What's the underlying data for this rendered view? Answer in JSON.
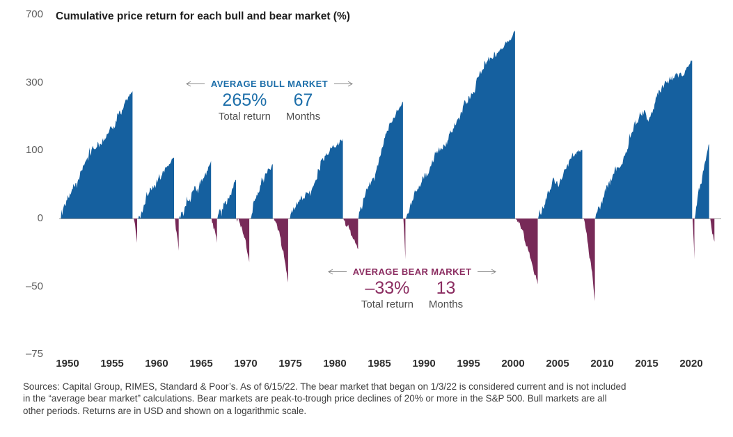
{
  "title": "Cumulative price return for each bull and bear market (%)",
  "annotations": {
    "bull": {
      "label": "AVERAGE BULL MARKET",
      "return_value": "265%",
      "return_caption": "Total return",
      "months_value": "67",
      "months_caption": "Months"
    },
    "bear": {
      "label": "AVERAGE BEAR MARKET",
      "return_value": "–33%",
      "return_caption": "Total return",
      "months_value": "13",
      "months_caption": "Months"
    }
  },
  "footer": {
    "lines": [
      "Sources: Capital Group, RIMES, Standard & Poor’s. As of 6/15/22. The bear market that began on 1/3/22 is considered current and is not included",
      "in the “average bear market” calculations. Bear markets are peak-to-trough price declines of 20% or more in the S&P 500. Bull markets are all",
      "other periods. Returns are in USD and shown on a logarithmic scale."
    ]
  },
  "colors": {
    "bull_fill": "#15609F",
    "bear_fill": "#772A58",
    "bull_accent": "#1C6EA9",
    "bear_accent": "#8B2D61",
    "arrow_gray": "#8a8a8a",
    "zero_line": "#9b9b9b",
    "y_label": "#5d5d5d",
    "x_label": "#2f2f2f"
  },
  "chart_data": {
    "type": "area",
    "title": "Cumulative price return for each bull and bear market (%)",
    "scale": "logarithmic",
    "y_ticks": [
      700,
      300,
      100,
      0,
      -50,
      -75
    ],
    "x_ticks": [
      1950,
      1955,
      1960,
      1965,
      1970,
      1975,
      1980,
      1985,
      1990,
      1995,
      2000,
      2005,
      2010,
      2015,
      2020
    ],
    "x_range": [
      1949.2,
      2022.6
    ],
    "y_range_pct": [
      -75,
      700
    ],
    "legend_position": "none",
    "grid": false,
    "averages": {
      "bull": {
        "total_return_pct": 265,
        "months": 67
      },
      "bear": {
        "total_return_pct": -33,
        "months": 13
      }
    },
    "segments": [
      {
        "type": "bull",
        "start": 1949.2,
        "end": 1957.3,
        "return_pct": 267
      },
      {
        "type": "bear",
        "start": 1957.3,
        "end": 1957.81,
        "return_pct": -22
      },
      {
        "type": "bull",
        "start": 1957.81,
        "end": 1961.95,
        "return_pct": 86
      },
      {
        "type": "bear",
        "start": 1961.95,
        "end": 1962.48,
        "return_pct": -28
      },
      {
        "type": "bull",
        "start": 1962.48,
        "end": 1966.11,
        "return_pct": 80
      },
      {
        "type": "bear",
        "start": 1966.11,
        "end": 1966.77,
        "return_pct": -22
      },
      {
        "type": "bull",
        "start": 1966.77,
        "end": 1968.91,
        "return_pct": 48
      },
      {
        "type": "bear",
        "start": 1968.91,
        "end": 1970.4,
        "return_pct": -36
      },
      {
        "type": "bull",
        "start": 1970.4,
        "end": 1973.03,
        "return_pct": 74
      },
      {
        "type": "bear",
        "start": 1973.03,
        "end": 1974.76,
        "return_pct": -48
      },
      {
        "type": "bull",
        "start": 1974.76,
        "end": 1980.91,
        "return_pct": 126
      },
      {
        "type": "bear",
        "start": 1980.91,
        "end": 1982.61,
        "return_pct": -27
      },
      {
        "type": "bull",
        "start": 1982.61,
        "end": 1987.65,
        "return_pct": 229
      },
      {
        "type": "bear",
        "start": 1987.65,
        "end": 1987.92,
        "return_pct": -34
      },
      {
        "type": "bull",
        "start": 1987.92,
        "end": 2000.23,
        "return_pct": 582
      },
      {
        "type": "bear",
        "start": 2000.23,
        "end": 2002.77,
        "return_pct": -49
      },
      {
        "type": "bull",
        "start": 2002.77,
        "end": 2007.77,
        "return_pct": 101
      },
      {
        "type": "bear",
        "start": 2007.77,
        "end": 2009.19,
        "return_pct": -57
      },
      {
        "type": "bull",
        "start": 2009.19,
        "end": 2020.1,
        "return_pct": 401
      },
      {
        "type": "bear",
        "start": 2020.1,
        "end": 2020.35,
        "return_pct": -34
      },
      {
        "type": "bull",
        "start": 2020.35,
        "end": 2022.01,
        "return_pct": 114
      },
      {
        "type": "bear",
        "start": 2022.01,
        "end": 2022.6,
        "return_pct": -21,
        "note": "current"
      }
    ]
  }
}
